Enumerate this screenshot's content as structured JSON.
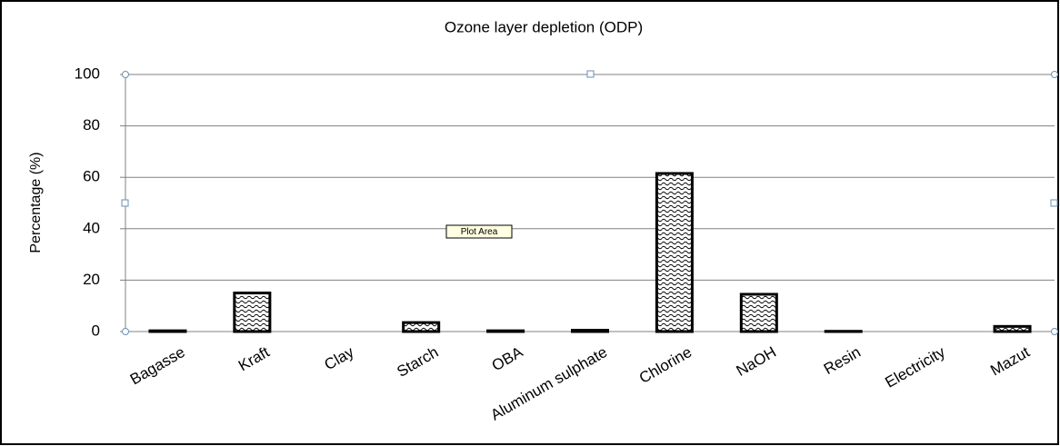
{
  "chart_data": {
    "type": "bar",
    "title": "Ozone layer depletion (ODP)",
    "ylabel": "Percentage (%)",
    "tooltip": "Plot Area",
    "categories": [
      "Bagasse",
      "Kraft",
      "Clay",
      "Starch",
      "OBA",
      "Aluminum sulphate",
      "Chlorine",
      "NaOH",
      "Resin",
      "Electricity",
      "Mazut"
    ],
    "values": [
      0.3,
      15,
      0,
      3.5,
      0.3,
      0.5,
      61.5,
      14.5,
      0.1,
      0,
      2
    ],
    "color": "#000000",
    "ylim": [
      0,
      100
    ],
    "yticks": [
      0,
      20,
      40,
      60,
      80,
      100
    ],
    "grid": true
  }
}
